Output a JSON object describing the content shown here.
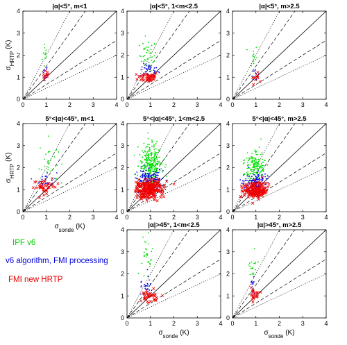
{
  "chart_data": {
    "type": "scatter",
    "xlim": [
      0,
      4
    ],
    "ylim": [
      0,
      4
    ],
    "xticks": [
      "0",
      "1",
      "2",
      "3",
      "4"
    ],
    "yticks": [
      "0",
      "1",
      "2",
      "3",
      "4"
    ],
    "xlabel_base": "σ",
    "xlabel_sub": "sonde",
    "xlabel_unit": " (K)",
    "ylabel_base": "σ",
    "ylabel_sub": "HRTP",
    "ylabel_unit": " (K)",
    "reference_lines": [
      {
        "style": "solid",
        "slope": 1
      },
      {
        "style": "dashed",
        "slopes": [
          1.5,
          0.667
        ]
      },
      {
        "style": "dotted",
        "slopes": [
          2.0,
          0.5
        ]
      }
    ],
    "series": [
      {
        "name": "IPF v6",
        "color": "#00e000",
        "marker": "dot"
      },
      {
        "name": "v6 algorithm, FMI processing",
        "color": "#0000ee",
        "marker": "dot"
      },
      {
        "name": "FMI new HRTP",
        "color": "#ee0000",
        "marker": "x"
      }
    ],
    "panels": [
      {
        "id": "r1c1",
        "title": "|α|<5°, m<1",
        "empty": false,
        "clusters": [
          {
            "series": 0,
            "cx": 0.95,
            "cy": 2.0,
            "sx": 0.06,
            "sy": 0.35,
            "n": 12
          },
          {
            "series": 1,
            "cx": 0.95,
            "cy": 1.25,
            "sx": 0.06,
            "sy": 0.15,
            "n": 10
          },
          {
            "series": 2,
            "cx": 1.0,
            "cy": 1.05,
            "sx": 0.07,
            "sy": 0.12,
            "n": 10
          }
        ]
      },
      {
        "id": "r1c2",
        "title": "|α|<5°, 1<m<2.5",
        "empty": false,
        "clusters": [
          {
            "series": 0,
            "cx": 0.9,
            "cy": 2.0,
            "sx": 0.18,
            "sy": 0.35,
            "n": 45
          },
          {
            "series": 1,
            "cx": 0.95,
            "cy": 1.3,
            "sx": 0.2,
            "sy": 0.15,
            "n": 40
          },
          {
            "series": 2,
            "cx": 0.9,
            "cy": 1.0,
            "sx": 0.22,
            "sy": 0.12,
            "n": 45
          }
        ]
      },
      {
        "id": "r1c3",
        "title": "|α|<5°, m>2.5",
        "empty": false,
        "clusters": [
          {
            "series": 0,
            "cx": 0.9,
            "cy": 1.9,
            "sx": 0.08,
            "sy": 0.3,
            "n": 14
          },
          {
            "series": 1,
            "cx": 0.95,
            "cy": 1.2,
            "sx": 0.08,
            "sy": 0.15,
            "n": 10
          },
          {
            "series": 2,
            "cx": 1.0,
            "cy": 0.95,
            "sx": 0.1,
            "sy": 0.12,
            "n": 10
          }
        ]
      },
      {
        "id": "r2c1",
        "title": "5°<|α|<45°, m<1",
        "empty": false,
        "clusters": [
          {
            "series": 0,
            "cx": 1.1,
            "cy": 2.3,
            "sx": 0.2,
            "sy": 0.5,
            "n": 30
          },
          {
            "series": 1,
            "cx": 1.0,
            "cy": 1.45,
            "sx": 0.22,
            "sy": 0.18,
            "n": 25
          },
          {
            "series": 2,
            "cx": 1.0,
            "cy": 1.15,
            "sx": 0.28,
            "sy": 0.15,
            "n": 35
          }
        ]
      },
      {
        "id": "r2c2",
        "title": "5°<|α|<45°, 1<m<2.5",
        "empty": false,
        "clusters": [
          {
            "series": 0,
            "cx": 1.0,
            "cy": 2.1,
            "sx": 0.25,
            "sy": 0.45,
            "n": 300
          },
          {
            "series": 1,
            "cx": 1.0,
            "cy": 1.4,
            "sx": 0.3,
            "sy": 0.25,
            "n": 180
          },
          {
            "series": 2,
            "cx": 0.95,
            "cy": 1.0,
            "sx": 0.3,
            "sy": 0.2,
            "n": 240
          }
        ]
      },
      {
        "id": "r2c3",
        "title": "5°<|α|<45°, m>2.5",
        "empty": false,
        "clusters": [
          {
            "series": 0,
            "cx": 0.95,
            "cy": 2.0,
            "sx": 0.22,
            "sy": 0.4,
            "n": 180
          },
          {
            "series": 1,
            "cx": 1.0,
            "cy": 1.35,
            "sx": 0.25,
            "sy": 0.2,
            "n": 130
          },
          {
            "series": 2,
            "cx": 0.95,
            "cy": 0.95,
            "sx": 0.25,
            "sy": 0.18,
            "n": 180
          }
        ]
      },
      {
        "id": "r3c1",
        "title": "",
        "empty": true,
        "clusters": []
      },
      {
        "id": "r3c2",
        "title": "|α|>45°, 1<m<2.5",
        "empty": false,
        "clusters": [
          {
            "series": 0,
            "cx": 0.85,
            "cy": 2.6,
            "sx": 0.12,
            "sy": 0.5,
            "n": 30
          },
          {
            "series": 1,
            "cx": 0.85,
            "cy": 1.5,
            "sx": 0.12,
            "sy": 0.3,
            "n": 25
          },
          {
            "series": 2,
            "cx": 0.95,
            "cy": 1.0,
            "sx": 0.18,
            "sy": 0.15,
            "n": 35
          }
        ]
      },
      {
        "id": "r3c3",
        "title": "|α|>45°, m>2.5",
        "empty": false,
        "clusters": [
          {
            "series": 0,
            "cx": 0.9,
            "cy": 2.3,
            "sx": 0.1,
            "sy": 0.45,
            "n": 18
          },
          {
            "series": 1,
            "cx": 0.85,
            "cy": 1.4,
            "sx": 0.08,
            "sy": 0.25,
            "n": 14
          },
          {
            "series": 2,
            "cx": 0.95,
            "cy": 1.0,
            "sx": 0.12,
            "sy": 0.15,
            "n": 20
          }
        ]
      }
    ]
  },
  "legend": {
    "items": [
      {
        "label": "IPF v6",
        "color": "#00cc00"
      },
      {
        "label": "v6 algorithm, FMI processing",
        "color": "#0000dd"
      },
      {
        "label": "FMI new HRTP",
        "color": "#ee0000"
      }
    ]
  }
}
